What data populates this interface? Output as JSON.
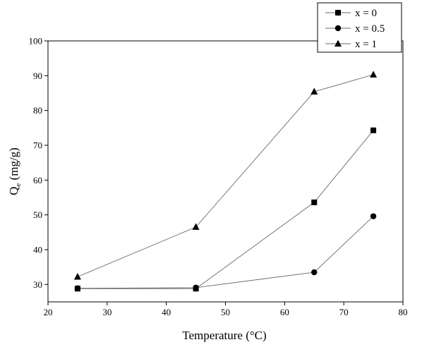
{
  "chart_data": {
    "type": "line",
    "xlabel": "Temperature (°C)",
    "ylabel_main": "Q",
    "ylabel_sub": "e",
    "ylabel_unit": " (mg/g)",
    "xlim": [
      20,
      80
    ],
    "ylim": [
      25,
      100
    ],
    "xticks": [
      20,
      30,
      40,
      50,
      60,
      70,
      80
    ],
    "yticks": [
      30,
      40,
      50,
      60,
      70,
      80,
      90,
      100
    ],
    "grid": false,
    "legend_position": "top-right",
    "x": [
      25,
      45,
      65,
      75
    ],
    "series": [
      {
        "name": "x = 0",
        "marker": "square",
        "values": [
          28.8,
          28.8,
          53.6,
          74.3
        ]
      },
      {
        "name": "x = 0.5",
        "marker": "circle",
        "values": [
          28.9,
          29.1,
          33.5,
          49.6
        ]
      },
      {
        "name": "x = 1",
        "marker": "triangle",
        "values": [
          32.2,
          46.5,
          85.4,
          90.3
        ]
      }
    ],
    "colors": {
      "markers": "#000000",
      "lines": "#6a6a6a",
      "axes": "#000000"
    }
  }
}
